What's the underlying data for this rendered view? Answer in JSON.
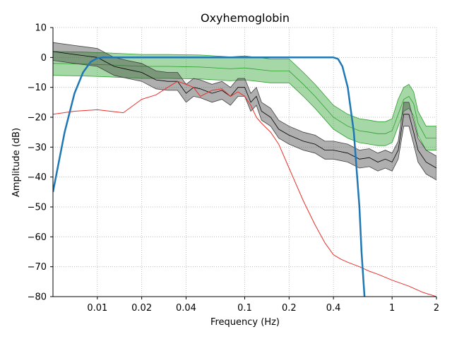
{
  "chart_data": {
    "type": "line",
    "title": "Oxyhemoglobin",
    "xlabel": "Frequency (Hz)",
    "ylabel": "Amplitude (dB)",
    "x_scale": "log",
    "xlim": [
      0.005,
      2
    ],
    "ylim": [
      -80,
      10
    ],
    "x_ticks": [
      {
        "value": 0.01,
        "label": "0.01"
      },
      {
        "value": 0.02,
        "label": "0.02"
      },
      {
        "value": 0.04,
        "label": "0.04"
      },
      {
        "value": 0.1,
        "label": "0.1"
      },
      {
        "value": 0.2,
        "label": "0.2"
      },
      {
        "value": 0.4,
        "label": "0.4"
      },
      {
        "value": 1,
        "label": "1"
      },
      {
        "value": 2,
        "label": "2"
      }
    ],
    "y_ticks": [
      {
        "value": 10,
        "label": "10"
      },
      {
        "value": 0,
        "label": "0"
      },
      {
        "value": -10,
        "label": "−10"
      },
      {
        "value": -20,
        "label": "−20"
      },
      {
        "value": -30,
        "label": "−30"
      },
      {
        "value": -40,
        "label": "−40"
      },
      {
        "value": -50,
        "label": "−50"
      },
      {
        "value": -60,
        "label": "−60"
      },
      {
        "value": -70,
        "label": "−70"
      },
      {
        "value": -80,
        "label": "−80"
      }
    ],
    "grid": true,
    "colors": {
      "green_band": "#2ca02c",
      "gray_band": "#404040",
      "red": "#e8312b",
      "blue": "#1f77b4",
      "grid": "#b0b0b0"
    },
    "series": [
      {
        "style": "band",
        "color": "#2ca02c",
        "x": [
          0.005,
          0.008,
          0.012,
          0.02,
          0.03,
          0.05,
          0.08,
          0.1,
          0.15,
          0.2,
          0.25,
          0.3,
          0.4,
          0.5,
          0.6,
          0.7,
          0.8,
          0.9,
          1.0,
          1.1,
          1.2,
          1.3,
          1.4,
          1.5,
          1.7,
          2.0
        ],
        "y_center": [
          -2,
          -2.2,
          -2.5,
          -3,
          -3,
          -3.2,
          -3.8,
          -3.5,
          -4.5,
          -4.5,
          -9,
          -13,
          -20,
          -23,
          -24.5,
          -25,
          -25.5,
          -25.5,
          -24.5,
          -19,
          -14,
          -13,
          -15.5,
          -22,
          -27,
          -27
        ],
        "y_upper": [
          2,
          1.8,
          1.5,
          1,
          1,
          0.8,
          0.2,
          0.5,
          -0.5,
          -0.5,
          -5,
          -9,
          -16,
          -19,
          -20.5,
          -21,
          -21.5,
          -21.5,
          -20.5,
          -14,
          -10,
          -9,
          -11.5,
          -18,
          -23,
          -23
        ],
        "y_lower": [
          -6,
          -6.2,
          -6.5,
          -7,
          -7,
          -7.2,
          -7.8,
          -7.5,
          -8.5,
          -8.5,
          -13,
          -17,
          -24,
          -27,
          -28.5,
          -29,
          -29.5,
          -29.5,
          -28.5,
          -23,
          -18,
          -17,
          -19.5,
          -26,
          -31,
          -31
        ]
      },
      {
        "style": "band",
        "color": "#404040",
        "x": [
          0.005,
          0.007,
          0.01,
          0.013,
          0.016,
          0.02,
          0.025,
          0.03,
          0.035,
          0.04,
          0.045,
          0.05,
          0.06,
          0.07,
          0.08,
          0.09,
          0.1,
          0.11,
          0.12,
          0.13,
          0.15,
          0.17,
          0.2,
          0.25,
          0.3,
          0.35,
          0.4,
          0.5,
          0.6,
          0.7,
          0.8,
          0.9,
          1.0,
          1.1,
          1.2,
          1.3,
          1.4,
          1.5,
          1.7,
          2.0
        ],
        "y_center": [
          2,
          1,
          0,
          -3,
          -4,
          -5,
          -7.5,
          -8,
          -8,
          -12,
          -10,
          -10.5,
          -12,
          -11,
          -13,
          -10,
          -10,
          -15,
          -13,
          -18,
          -20,
          -24,
          -26,
          -28,
          -29,
          -31,
          -31,
          -32,
          -34,
          -33.5,
          -35,
          -34,
          -35,
          -31,
          -19,
          -19,
          -25,
          -31,
          -35,
          -37
        ],
        "y_upper": [
          5,
          4,
          3,
          0,
          -1,
          -2,
          -4.5,
          -5,
          -5,
          -9,
          -7,
          -7.5,
          -9,
          -8,
          -10,
          -7,
          -7,
          -12,
          -10,
          -15,
          -17,
          -21,
          -23,
          -25,
          -26,
          -28,
          -28,
          -29,
          -31,
          -30.5,
          -32,
          -31,
          -32,
          -28,
          -15,
          -15,
          -21,
          -27,
          -31,
          -33
        ],
        "y_lower": [
          -1,
          -2,
          -3,
          -6,
          -7,
          -8,
          -10.5,
          -11,
          -11,
          -15,
          -13,
          -13.5,
          -15,
          -14,
          -16,
          -13,
          -13,
          -18,
          -16,
          -21,
          -23,
          -27,
          -29,
          -31,
          -32,
          -34,
          -34,
          -35,
          -37,
          -36.5,
          -38,
          -37,
          -38,
          -34,
          -23,
          -23,
          -29,
          -35,
          -39,
          -41
        ]
      },
      {
        "style": "line",
        "color": "#e8312b",
        "x": [
          0.005,
          0.007,
          0.01,
          0.015,
          0.02,
          0.025,
          0.03,
          0.035,
          0.04,
          0.045,
          0.05,
          0.06,
          0.07,
          0.08,
          0.09,
          0.1,
          0.11,
          0.12,
          0.13,
          0.15,
          0.17,
          0.2,
          0.25,
          0.3,
          0.35,
          0.4,
          0.45,
          0.5,
          0.6,
          0.7,
          0.8,
          1.0,
          1.3,
          1.6,
          2.0
        ],
        "y": [
          -19,
          -18,
          -17.5,
          -18.5,
          -14,
          -12.5,
          -10,
          -8,
          -9,
          -10,
          -13,
          -11,
          -10.5,
          -13,
          -11.5,
          -13,
          -16,
          -20,
          -22,
          -25,
          -29,
          -37,
          -48,
          -56,
          -62,
          -66,
          -67.5,
          -68.5,
          -70,
          -71.5,
          -72.5,
          -74.5,
          -76.5,
          -78.5,
          -80
        ]
      },
      {
        "style": "line",
        "color": "#1f77b4",
        "x": [
          0.005,
          0.006,
          0.007,
          0.008,
          0.009,
          0.01,
          0.011,
          0.012,
          0.02,
          0.05,
          0.1,
          0.2,
          0.3,
          0.4,
          0.43,
          0.46,
          0.5,
          0.55,
          0.6,
          0.62,
          0.64,
          0.65
        ],
        "y": [
          -45,
          -25,
          -12,
          -5,
          -1.5,
          -0.2,
          0,
          0,
          0,
          0,
          0,
          0,
          0,
          0,
          -0.5,
          -3,
          -10,
          -25,
          -50,
          -65,
          -75,
          -80
        ]
      }
    ]
  }
}
